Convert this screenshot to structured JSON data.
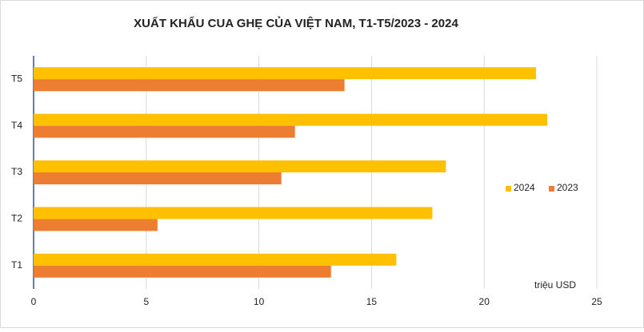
{
  "chart_data": {
    "type": "barh",
    "title": "XUẤT KHẨU CUA GHẸ CỦA VIỆT NAM, T1-T5/2023 - 2024",
    "x_label": "triệu USD",
    "categories": [
      "T1",
      "T2",
      "T3",
      "T4",
      "T5"
    ],
    "series": [
      {
        "name": "2024",
        "color": "#ffc000",
        "values": [
          16.1,
          17.7,
          18.3,
          22.8,
          22.3
        ]
      },
      {
        "name": "2023",
        "color": "#ed7d31",
        "values": [
          13.2,
          5.5,
          11.0,
          11.6,
          13.8
        ]
      }
    ],
    "xlim": [
      0,
      25
    ],
    "xticks": [
      0,
      5,
      10,
      15,
      20,
      25
    ],
    "grid": true,
    "legend": "right"
  }
}
